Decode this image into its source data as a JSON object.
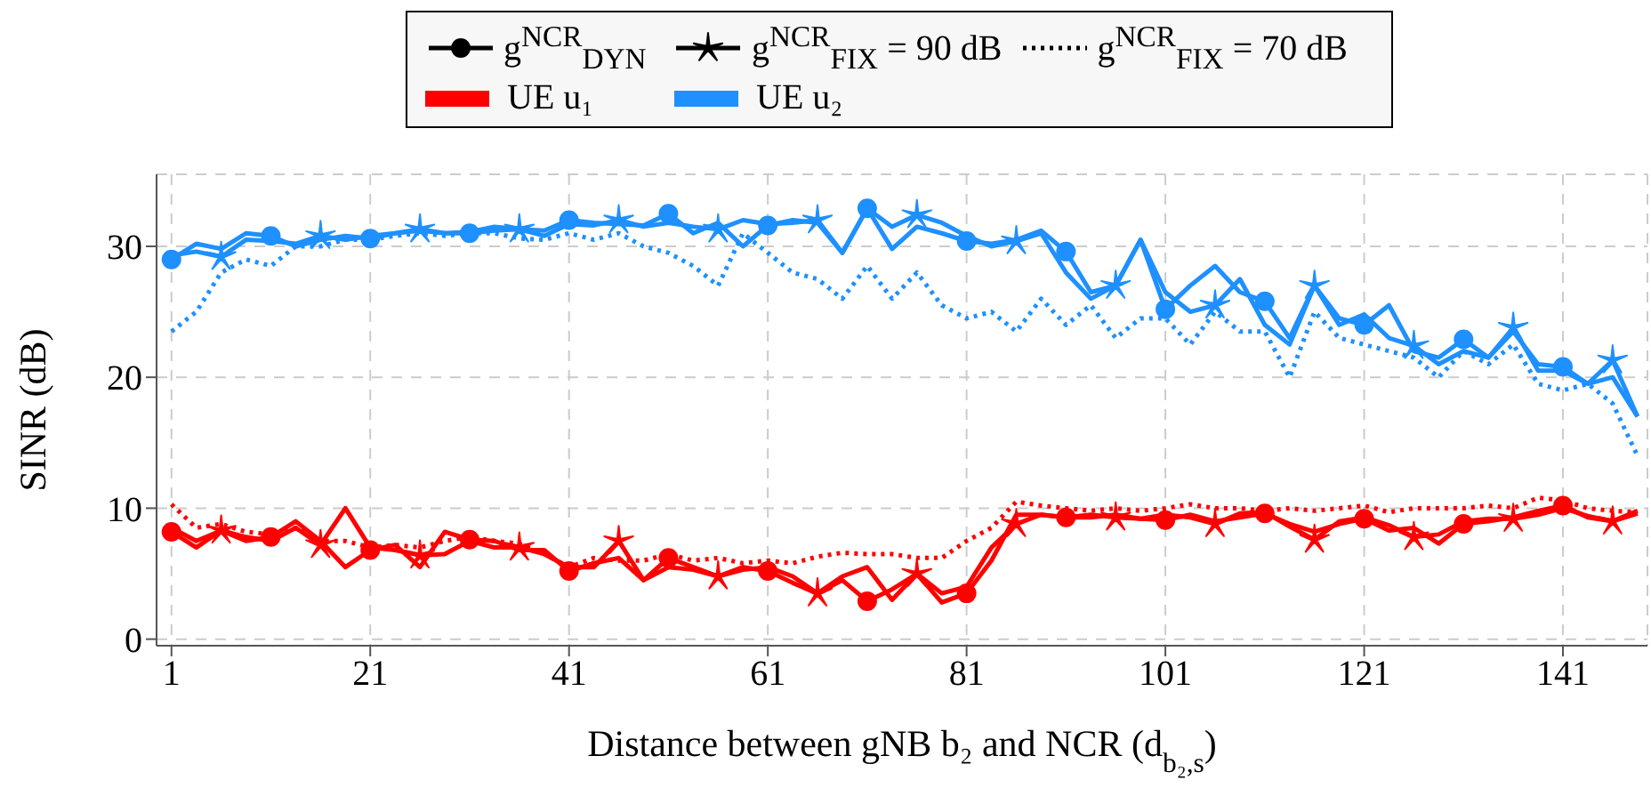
{
  "chart_data": {
    "type": "line",
    "xlabel": "Distance between gNB b₂ and NCR (d$_{b₂,s}$)",
    "ylabel": "SINR (dB)",
    "x": [
      1,
      3.5,
      6,
      8.5,
      11,
      13.5,
      16,
      18.5,
      21,
      23.5,
      26,
      28.5,
      31,
      33.5,
      36,
      38.5,
      41,
      43.5,
      46,
      48.5,
      51,
      53.5,
      56,
      58.5,
      61,
      63.5,
      66,
      68.5,
      71,
      73.5,
      76,
      78.5,
      81,
      83.5,
      86,
      88.5,
      91,
      93.5,
      96,
      98.5,
      101,
      103.5,
      106,
      108.5,
      111,
      113.5,
      116,
      118.5,
      121,
      123.5,
      126,
      128.5,
      131,
      133.5,
      136,
      138.5,
      141,
      143.5,
      146,
      148.5
    ],
    "xlim": [
      -0.5,
      149.5
    ],
    "xticks": [
      1,
      21,
      41,
      61,
      81,
      101,
      121,
      141
    ],
    "ylim": [
      -0.5,
      35.5
    ],
    "yticks": [
      0,
      10,
      20,
      30
    ],
    "grid": true,
    "annotations": [
      "g$^{NCR}$$_{DYN}$",
      "g$^{NCR}$$_{FIX}$ = 90 dB",
      "g$^{NCR}$$_{FIX}$ = 70 dB",
      "UE u₁",
      "UE u₂"
    ],
    "series": [
      {
        "color": "#1e90ff",
        "line_style": "solid",
        "values": [
          29,
          30.2,
          29.8,
          31,
          30.8,
          30,
          30.5,
          30.8,
          30.6,
          31,
          31.2,
          31,
          31,
          31.2,
          31.3,
          31.2,
          32,
          31.8,
          31.7,
          31.6,
          32.5,
          31,
          31.8,
          30,
          31.6,
          32,
          31.8,
          29.5,
          32.9,
          29.8,
          31.5,
          31,
          30.4,
          30.2,
          30.5,
          31.2,
          29.6,
          26.5,
          27,
          30.5,
          25.2,
          27,
          28.5,
          26.5,
          25.8,
          23,
          27,
          24.5,
          24,
          25.5,
          22,
          21.5,
          22.9,
          21.5,
          23.5,
          21,
          20.8,
          19.5,
          20,
          17
        ]
      },
      {
        "color": "#1e90ff",
        "line_style": "solid",
        "values": [
          29.3,
          29.6,
          29.2,
          30.5,
          30.4,
          30.2,
          30.8,
          30.5,
          30.8,
          31,
          31.3,
          31,
          31.1,
          31.5,
          31.3,
          30.8,
          31.7,
          31.6,
          32,
          31.5,
          31.8,
          31.5,
          31.3,
          32,
          31.7,
          31.8,
          32,
          29.5,
          32.9,
          31.5,
          32.4,
          31.8,
          30.8,
          30,
          30.4,
          31,
          28,
          26,
          27,
          30.5,
          26.5,
          25,
          25.5,
          27.5,
          24,
          22.5,
          27,
          24,
          24.8,
          23,
          22.4,
          21,
          22,
          21.5,
          23.8,
          20.5,
          20.5,
          19.5,
          21.3,
          17
        ]
      },
      {
        "color": "#1e90ff",
        "marker": "none",
        "line_style": "dotted",
        "values": [
          23.5,
          25,
          28,
          29,
          28.5,
          30,
          30,
          30.5,
          30.5,
          30.8,
          31,
          30.8,
          31,
          31,
          30.6,
          30.5,
          31,
          30.5,
          31,
          30,
          29.5,
          28.5,
          27,
          31,
          29.5,
          28,
          27.5,
          26,
          28.5,
          26,
          28,
          25.5,
          24.5,
          25,
          23.5,
          26,
          24,
          25.5,
          23,
          24.5,
          24.5,
          22.5,
          25,
          23.5,
          23.5,
          20,
          25,
          23,
          22.5,
          22,
          21.5,
          20,
          22,
          21,
          22.5,
          19.5,
          19,
          19.5,
          18,
          14
        ]
      },
      {
        "color": "#ff0000",
        "line_style": "solid",
        "values": [
          8.2,
          7,
          8.3,
          7.5,
          7.8,
          9,
          7.5,
          5.5,
          6.8,
          7.2,
          5.5,
          8.2,
          7.6,
          7.5,
          6.8,
          6.8,
          5.2,
          5.8,
          6.2,
          4.5,
          6.2,
          5.5,
          4.8,
          5.5,
          5.2,
          4.3,
          3.5,
          4.5,
          2.9,
          3.8,
          5,
          2.8,
          3.5,
          6,
          9.5,
          9.5,
          9.3,
          9.3,
          9.5,
          9.2,
          9.1,
          9.5,
          9,
          9.3,
          9.6,
          8.8,
          8.2,
          8.8,
          9.2,
          8.3,
          8.5,
          7.3,
          8.8,
          9,
          9.3,
          9.8,
          10.2,
          9.3,
          9,
          9.6
        ]
      },
      {
        "color": "#ff0000",
        "line_style": "solid",
        "values": [
          8.5,
          7.5,
          8.3,
          7.8,
          7.5,
          8.5,
          7.2,
          10,
          7,
          6.8,
          6.4,
          6.5,
          7.5,
          7,
          7,
          6.5,
          5.5,
          5.5,
          7.5,
          4.5,
          5.5,
          5.3,
          4.8,
          5.3,
          5.5,
          4.8,
          3.5,
          4.8,
          5.5,
          3,
          5,
          3.5,
          4,
          7,
          8.8,
          9.5,
          9.3,
          9.5,
          9.3,
          9.2,
          9.5,
          9.3,
          8.8,
          9.6,
          9.7,
          8.6,
          7.6,
          9,
          9.3,
          8.7,
          7.8,
          8,
          9,
          9.2,
          9.2,
          9.5,
          10,
          9.4,
          9,
          9.8
        ]
      },
      {
        "color": "#ff0000",
        "marker": "none",
        "line_style": "dotted",
        "values": [
          10.3,
          8.5,
          8.8,
          8.2,
          8,
          8.5,
          7.5,
          7.5,
          7,
          7.2,
          7,
          7.5,
          7.8,
          7.5,
          7.3,
          6.5,
          5.5,
          6.2,
          6,
          6,
          6.5,
          6,
          6.2,
          5.8,
          6,
          5.8,
          6.3,
          6.6,
          6.5,
          6.5,
          6.2,
          6.2,
          7.5,
          8.5,
          10.5,
          10.2,
          10,
          9.8,
          10,
          9.8,
          10,
          10.3,
          10,
          10,
          9.8,
          10,
          9.8,
          10,
          10.2,
          9.7,
          10,
          10,
          10,
          10.2,
          10,
          10.8,
          10.6,
          10,
          9.8,
          9.7
        ]
      },
      {
        "type": "scatter",
        "color": "#1e90ff",
        "marker": "circle",
        "x": [
          1,
          11,
          21,
          31,
          41,
          51,
          61,
          71,
          81,
          91,
          101,
          111,
          121,
          131,
          141
        ],
        "values": [
          29,
          30.8,
          30.6,
          31,
          32,
          32.5,
          31.6,
          32.9,
          30.4,
          29.6,
          25.2,
          25.8,
          24,
          22.9,
          20.8
        ]
      },
      {
        "type": "scatter",
        "color": "#1e90ff",
        "marker": "star",
        "x": [
          6,
          16,
          26,
          36,
          46,
          56,
          66,
          76,
          86,
          96,
          106,
          116,
          126,
          136,
          146
        ],
        "values": [
          29.2,
          30.8,
          31.3,
          31.3,
          32,
          31.3,
          32,
          32.4,
          30.4,
          27,
          25.5,
          27,
          22.4,
          23.8,
          21.3
        ]
      },
      {
        "type": "scatter",
        "color": "#ff0000",
        "marker": "circle",
        "x": [
          1,
          11,
          21,
          31,
          41,
          51,
          61,
          71,
          81,
          91,
          101,
          111,
          121,
          131,
          141
        ],
        "values": [
          8.2,
          7.8,
          6.8,
          7.6,
          5.2,
          6.2,
          5.2,
          2.9,
          3.5,
          9.3,
          9.1,
          9.6,
          9.2,
          8.8,
          10.2
        ]
      },
      {
        "type": "scatter",
        "color": "#ff0000",
        "marker": "star",
        "x": [
          6,
          16,
          26,
          36,
          46,
          56,
          66,
          76,
          86,
          96,
          106,
          116,
          126,
          136,
          146
        ],
        "values": [
          8.3,
          7.2,
          6.4,
          7,
          7.5,
          4.8,
          3.5,
          5,
          8.8,
          9.3,
          8.8,
          7.6,
          7.8,
          9.2,
          9
        ]
      }
    ]
  }
}
